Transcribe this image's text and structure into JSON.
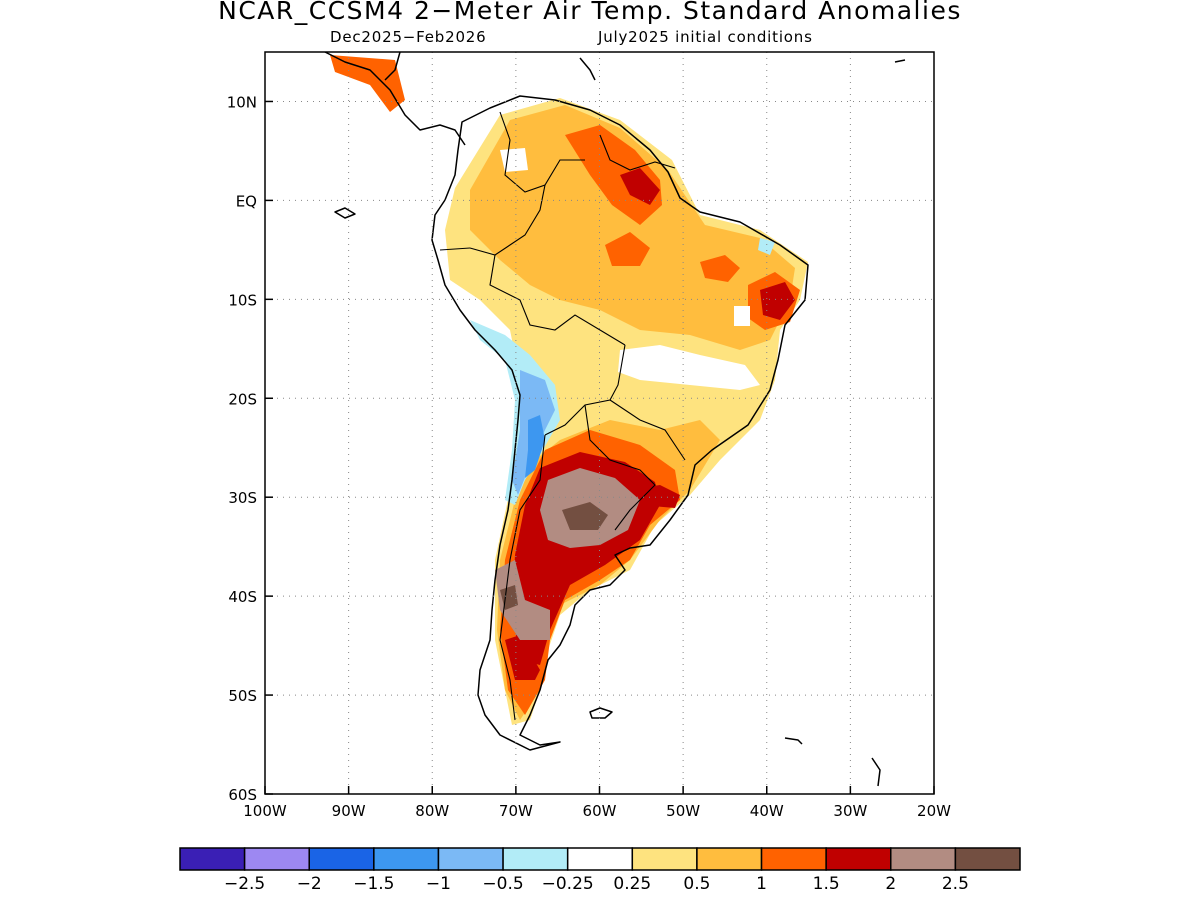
{
  "title": "NCAR_CCSM4 2−Meter Air Temp. Standard Anomalies",
  "subtitle_period": "Dec2025−Feb2026",
  "subtitle_init": "July2025 initial conditions",
  "map": {
    "lon_range": [
      -100,
      -20
    ],
    "lat_range": [
      -60,
      15
    ],
    "lon_ticks": [
      {
        "value": -100,
        "label": "100W"
      },
      {
        "value": -90,
        "label": "90W"
      },
      {
        "value": -80,
        "label": "80W"
      },
      {
        "value": -70,
        "label": "70W"
      },
      {
        "value": -60,
        "label": "60W"
      },
      {
        "value": -50,
        "label": "50W"
      },
      {
        "value": -40,
        "label": "40W"
      },
      {
        "value": -30,
        "label": "30W"
      },
      {
        "value": -20,
        "label": "20W"
      }
    ],
    "lat_ticks": [
      {
        "value": 10,
        "label": "10N"
      },
      {
        "value": 0,
        "label": "EQ"
      },
      {
        "value": -10,
        "label": "10S"
      },
      {
        "value": -20,
        "label": "20S"
      },
      {
        "value": -30,
        "label": "30S"
      },
      {
        "value": -40,
        "label": "40S"
      },
      {
        "value": -50,
        "label": "50S"
      },
      {
        "value": -60,
        "label": "60S"
      }
    ],
    "grid": "dotted"
  },
  "legend": {
    "colors": [
      "#3a1fb5",
      "#9d88f2",
      "#1a64e6",
      "#3d97f0",
      "#7bb9f5",
      "#b2ecf7",
      "#ffffff",
      "#fee37f",
      "#ffbd3e",
      "#ff6200",
      "#c00000",
      "#b28c82",
      "#734f41"
    ],
    "labels": [
      "−2.5",
      "−2",
      "−1.5",
      "−1",
      "−0.5",
      "−0.25",
      "0.25",
      "0.5",
      "1",
      "1.5",
      "2",
      "2.5"
    ]
  },
  "anomaly_levels": {
    "l025": "#fee37f",
    "l05": "#ffbd3e",
    "l1": "#ff6200",
    "l15": "#c00000",
    "l2": "#b28c82",
    "l25": "#734f41",
    "n025": "#b2ecf7",
    "n05": "#7bb9f5",
    "n1": "#3d97f0"
  }
}
